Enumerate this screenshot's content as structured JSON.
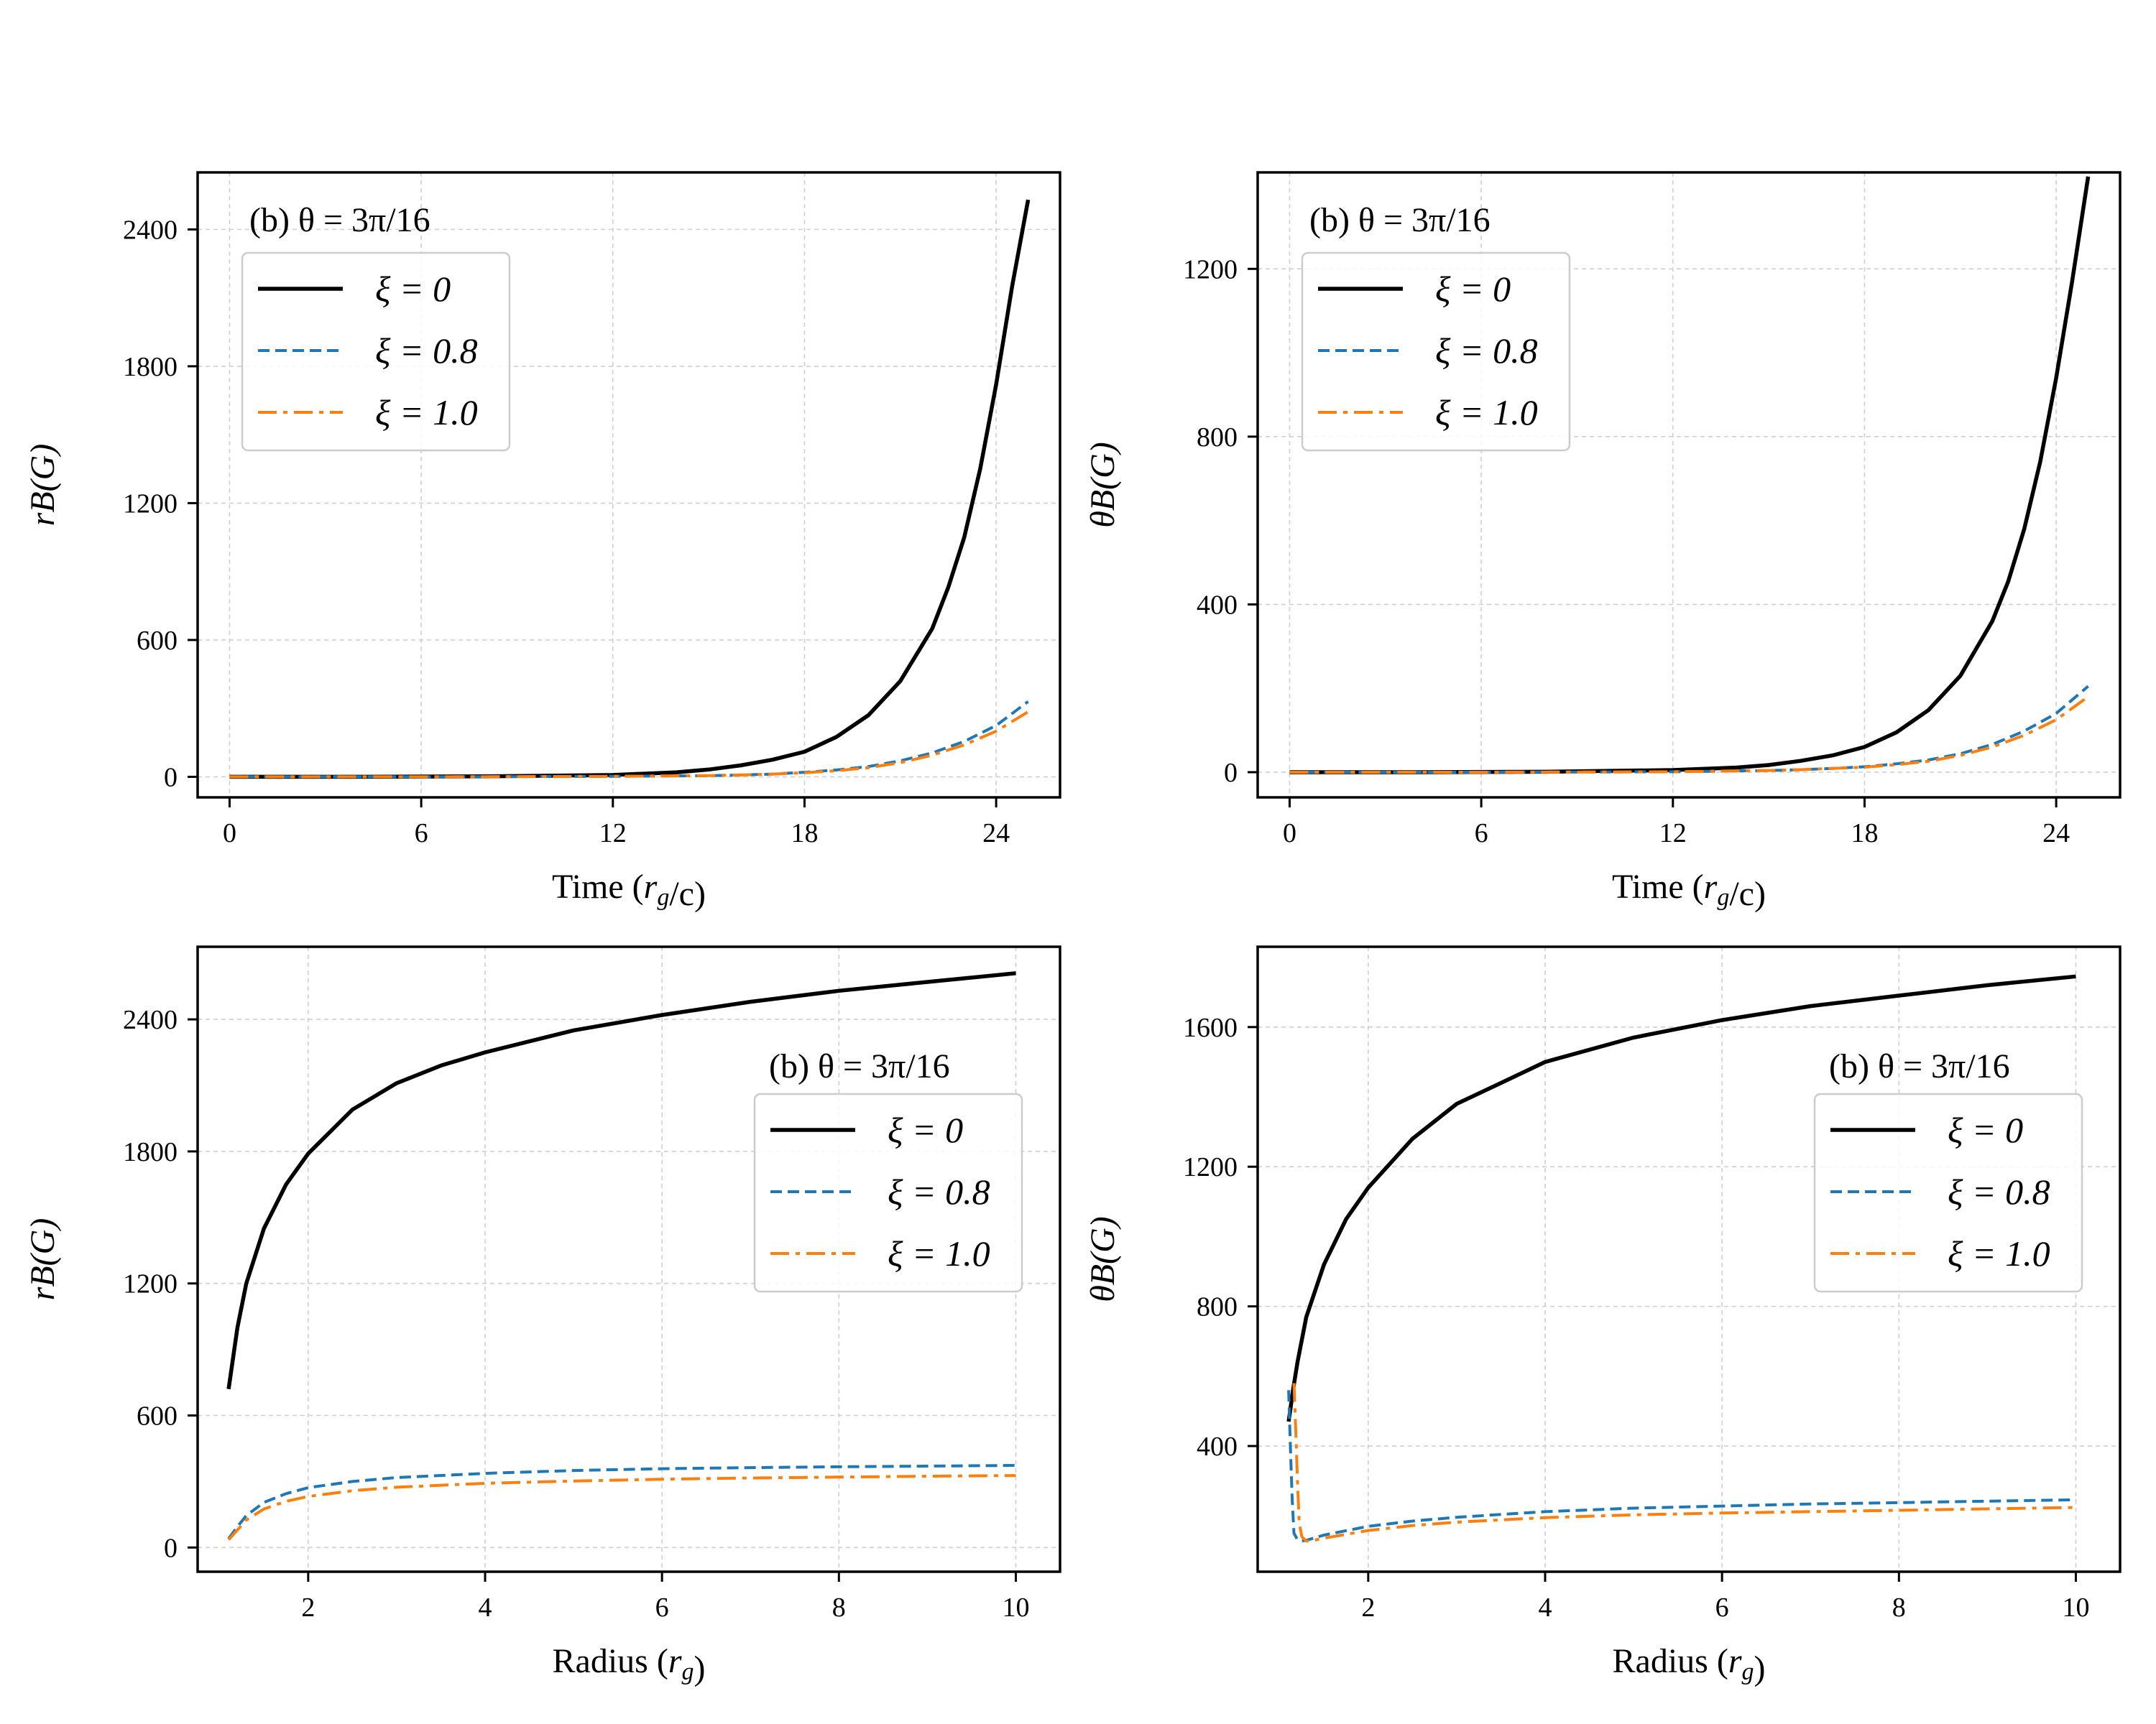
{
  "colors": {
    "xi0": "#000000",
    "xi08": "#1f77b4",
    "xi10": "#ff7f0e"
  },
  "chart_data": [
    {
      "id": "top-left",
      "type": "line",
      "annotation": "(b)   θ = 3π/16",
      "xlabel": "Time (r_g/c)",
      "ylabel": "rB(G)",
      "xlim": [
        -1,
        26
      ],
      "ylim": [
        -90,
        2650
      ],
      "xticks": [
        0,
        6,
        12,
        18,
        24
      ],
      "yticks": [
        0,
        600,
        1200,
        1800,
        2400
      ],
      "legend": "upper-left",
      "series": [
        {
          "name": "ξ = 0",
          "style": "solid",
          "color": "#000000",
          "width": 5.5,
          "x": [
            0,
            4,
            8,
            12,
            14,
            15,
            16,
            17,
            18,
            19,
            20,
            21,
            22,
            22.5,
            23,
            23.5,
            24,
            24.5,
            25
          ],
          "y": [
            0,
            0,
            2,
            8,
            20,
            32,
            50,
            75,
            110,
            175,
            270,
            420,
            650,
            830,
            1050,
            1350,
            1720,
            2150,
            2530
          ]
        },
        {
          "name": "ξ = 0.8",
          "style": "dashed",
          "color": "#1f77b4",
          "width": 4,
          "x": [
            0,
            6,
            12,
            15,
            16,
            17,
            18,
            19,
            20,
            21,
            22,
            23,
            24,
            25
          ],
          "y": [
            0,
            0,
            2,
            5,
            8,
            12,
            20,
            30,
            45,
            70,
            105,
            155,
            225,
            330
          ]
        },
        {
          "name": "ξ = 1.0",
          "style": "dashdot",
          "color": "#ff7f0e",
          "width": 4,
          "x": [
            0,
            6,
            12,
            15,
            16,
            17,
            18,
            19,
            20,
            21,
            22,
            23,
            24,
            25
          ],
          "y": [
            0,
            0,
            2,
            5,
            8,
            12,
            18,
            27,
            40,
            62,
            95,
            140,
            200,
            285
          ]
        }
      ]
    },
    {
      "id": "top-right",
      "type": "line",
      "annotation": "(b)   θ = 3π/16",
      "xlabel": "Time (r_g/c)",
      "ylabel": "θB(G)",
      "xlim": [
        -1,
        26
      ],
      "ylim": [
        -60,
        1430
      ],
      "xticks": [
        0,
        6,
        12,
        18,
        24
      ],
      "yticks": [
        0,
        400,
        800,
        1200
      ],
      "legend": "upper-left",
      "series": [
        {
          "name": "ξ = 0",
          "style": "solid",
          "color": "#000000",
          "width": 5.5,
          "x": [
            0,
            4,
            8,
            12,
            14,
            15,
            16,
            17,
            18,
            19,
            20,
            21,
            22,
            22.5,
            23,
            23.5,
            24,
            24.5,
            25
          ],
          "y": [
            0,
            0,
            1,
            5,
            11,
            17,
            27,
            40,
            60,
            95,
            148,
            230,
            360,
            455,
            580,
            740,
            940,
            1170,
            1420
          ]
        },
        {
          "name": "ξ = 0.8",
          "style": "dashed",
          "color": "#1f77b4",
          "width": 4,
          "x": [
            0,
            6,
            12,
            15,
            16,
            17,
            18,
            19,
            20,
            21,
            22,
            23,
            24,
            25
          ],
          "y": [
            0,
            0,
            1,
            4,
            6,
            9,
            13,
            20,
            29,
            44,
            66,
            98,
            140,
            205
          ]
        },
        {
          "name": "ξ = 1.0",
          "style": "dashdot",
          "color": "#ff7f0e",
          "width": 4,
          "x": [
            0,
            6,
            12,
            15,
            16,
            17,
            18,
            19,
            20,
            21,
            22,
            23,
            24,
            25
          ],
          "y": [
            0,
            0,
            1,
            4,
            6,
            9,
            12,
            18,
            26,
            40,
            60,
            88,
            125,
            180
          ]
        }
      ]
    },
    {
      "id": "bottom-left",
      "type": "line",
      "annotation": "(b)   θ = 3π/16",
      "xlabel": "Radius (r_g)",
      "ylabel": "rB(G)",
      "xlim": [
        0.75,
        10.5
      ],
      "ylim": [
        -110,
        2730
      ],
      "xticks": [
        2,
        4,
        6,
        8,
        10
      ],
      "yticks": [
        0,
        600,
        1200,
        1800,
        2400
      ],
      "legend": "right",
      "series": [
        {
          "name": "ξ = 0",
          "style": "solid",
          "color": "#000000",
          "width": 5.5,
          "x": [
            1.1,
            1.2,
            1.3,
            1.5,
            1.75,
            2,
            2.5,
            3,
            3.5,
            4,
            5,
            6,
            7,
            8,
            9,
            10
          ],
          "y": [
            720,
            1000,
            1200,
            1450,
            1650,
            1790,
            1990,
            2110,
            2190,
            2250,
            2350,
            2420,
            2480,
            2530,
            2570,
            2610
          ]
        },
        {
          "name": "ξ = 0.8",
          "style": "dashed",
          "color": "#1f77b4",
          "width": 4,
          "x": [
            1.1,
            1.2,
            1.3,
            1.5,
            1.75,
            2,
            2.5,
            3,
            4,
            5,
            6,
            7,
            8,
            9,
            10
          ],
          "y": [
            40,
            95,
            145,
            205,
            245,
            272,
            300,
            318,
            337,
            350,
            358,
            363,
            367,
            370,
            373
          ]
        },
        {
          "name": "ξ = 1.0",
          "style": "dashdot",
          "color": "#ff7f0e",
          "width": 4,
          "x": [
            1.1,
            1.2,
            1.3,
            1.5,
            1.75,
            2,
            2.5,
            3,
            4,
            5,
            6,
            7,
            8,
            9,
            10
          ],
          "y": [
            35,
            80,
            125,
            175,
            210,
            232,
            258,
            274,
            292,
            302,
            310,
            316,
            320,
            324,
            327
          ]
        }
      ]
    },
    {
      "id": "bottom-right",
      "type": "line",
      "annotation": "(b)   θ = 3π/16",
      "xlabel": "Radius (r_g)",
      "ylabel": "θB(G)",
      "xlim": [
        0.75,
        10.5
      ],
      "ylim": [
        40,
        1830
      ],
      "xticks": [
        2,
        4,
        6,
        8,
        10
      ],
      "yticks": [
        400,
        800,
        1200,
        1600
      ],
      "legend": "right",
      "series": [
        {
          "name": "ξ = 0",
          "style": "solid",
          "color": "#000000",
          "width": 5.5,
          "x": [
            1.1,
            1.15,
            1.2,
            1.3,
            1.5,
            1.75,
            2,
            2.5,
            3,
            3.5,
            4,
            5,
            6,
            7,
            8,
            9,
            10
          ],
          "y": [
            470,
            560,
            640,
            770,
            920,
            1050,
            1140,
            1280,
            1380,
            1440,
            1500,
            1570,
            1620,
            1660,
            1690,
            1720,
            1745
          ]
        },
        {
          "name": "ξ = 0.8",
          "style": "dashed",
          "color": "#1f77b4",
          "width": 4,
          "x": [
            1.1,
            1.12,
            1.14,
            1.16,
            1.2,
            1.25,
            1.3,
            1.5,
            2,
            2.5,
            3,
            4,
            5,
            6,
            7,
            8,
            9,
            10
          ],
          "y": [
            560,
            400,
            250,
            150,
            132,
            128,
            130,
            145,
            170,
            185,
            196,
            212,
            222,
            228,
            234,
            238,
            242,
            246
          ]
        },
        {
          "name": "ξ = 1.0",
          "style": "dashdot",
          "color": "#ff7f0e",
          "width": 4,
          "x": [
            1.16,
            1.18,
            1.2,
            1.22,
            1.25,
            1.3,
            1.35,
            1.5,
            2,
            2.5,
            3,
            4,
            5,
            6,
            7,
            8,
            9,
            10
          ],
          "y": [
            580,
            450,
            300,
            180,
            140,
            128,
            128,
            136,
            158,
            172,
            182,
            195,
            203,
            208,
            212,
            216,
            220,
            224
          ]
        }
      ]
    }
  ]
}
